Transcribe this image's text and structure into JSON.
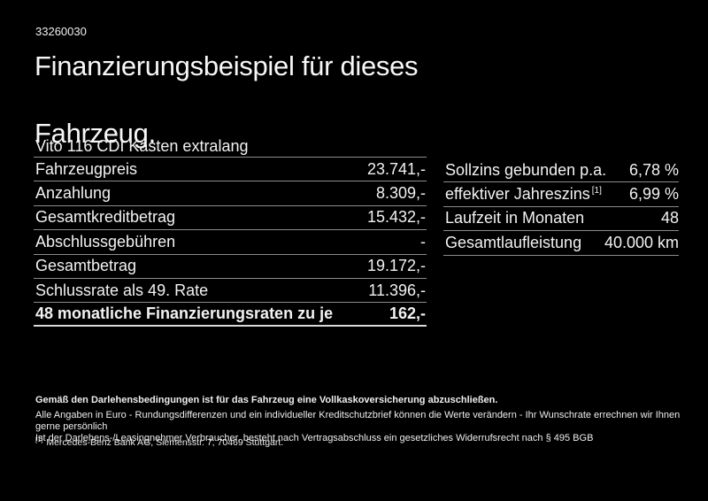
{
  "page": {
    "ref_number": "33260030",
    "title_line1": "Finanzierungsbeispiel für dieses",
    "title_line2": "Fahrzeug.",
    "subtitle": "Vito 116 CDI Kasten extralang"
  },
  "left_table": {
    "rows": [
      {
        "label": "Fahrzeugpreis",
        "value": "23.741,-"
      },
      {
        "label": "Anzahlung",
        "value": "8.309,-"
      },
      {
        "label": "Gesamtkreditbetrag",
        "value": "15.432,-"
      },
      {
        "label": "Abschlussgebühren",
        "value": "-"
      },
      {
        "label": "Gesamtbetrag",
        "value": "19.172,-"
      },
      {
        "label": "Schlussrate als 49. Rate",
        "value": "11.396,-"
      },
      {
        "label": "48 monatliche Finanzierungsraten zu je",
        "value": "162,-"
      }
    ]
  },
  "right_table": {
    "rows": [
      {
        "label": "Sollzins gebunden p.a.",
        "sup": "",
        "value": "6,78 %"
      },
      {
        "label": "effektiver Jahreszins",
        "sup": "[1]",
        "value": "6,99 %"
      },
      {
        "label": "Laufzeit in Monaten",
        "sup": "",
        "value": "48"
      },
      {
        "label": "Gesamtlaufleistung",
        "sup": "",
        "value": "40.000 km"
      }
    ]
  },
  "footer": {
    "bold_line": "Gemäß den Darlehensbedingungen ist für das Fahrzeug eine Vollkaskoversicherung abzuschließen.",
    "line2": "Alle Angaben in Euro - Rundungsdifferenzen und ein individueller Kreditschutzbrief können die Werte verändern - Ihr Wunschrate errechnen wir Ihnen gerne persönlich",
    "line3": "Ist der Darlehens-/Leasingnehmer Verbraucher, besteht nach Vertragsabschluss ein gesetzliches Widerrufsrecht nach § 495 BGB",
    "footnote_marker": "[1]",
    "footnote_text": "Mercedes-Benz Bank AG, Siemensstr. 7, 70469 Stuttgart."
  },
  "colors": {
    "background": "#000000",
    "text": "#f2f2f2",
    "divider": "#8c8c8c",
    "divider_strong": "#d9d9d9"
  }
}
